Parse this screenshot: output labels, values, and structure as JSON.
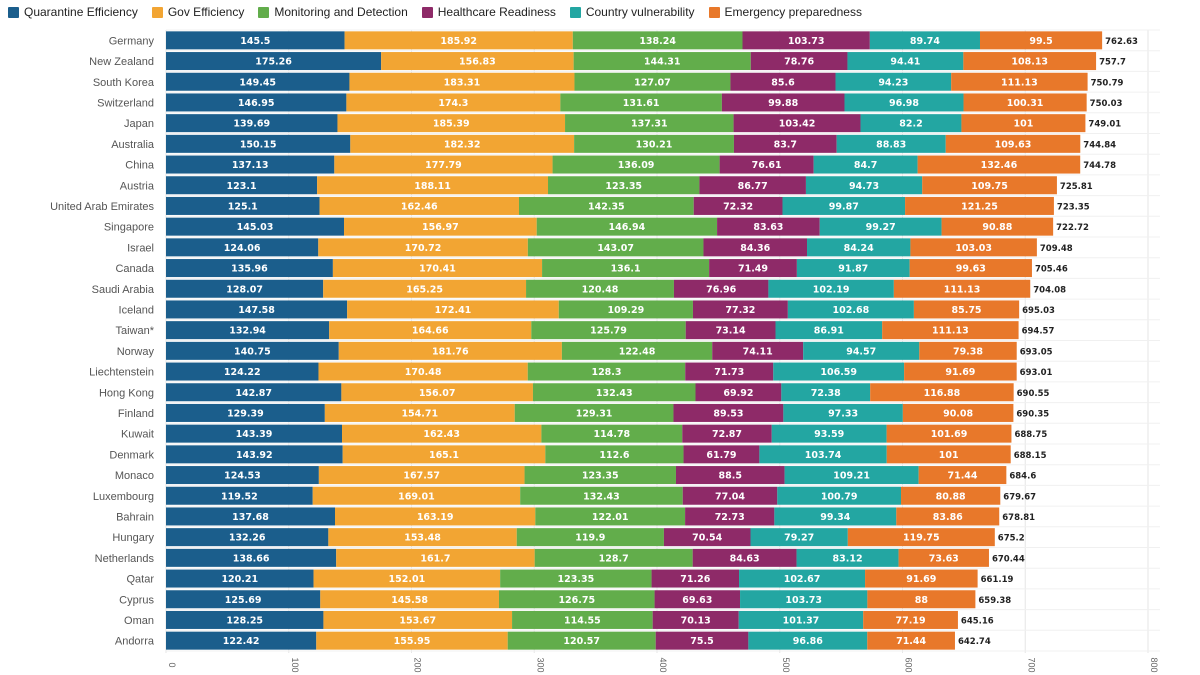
{
  "chart_data": {
    "type": "bar",
    "orientation": "horizontal",
    "stacked": true,
    "legend_position": "top-left",
    "grid": true,
    "xlim": [
      0,
      800
    ],
    "x_ticks": [
      "0",
      "100",
      "200",
      "300",
      "400",
      "500",
      "600",
      "700",
      "800"
    ],
    "categories": [
      "Germany",
      "New Zealand",
      "South Korea",
      "Switzerland",
      "Japan",
      "Australia",
      "China",
      "Austria",
      "United Arab Emirates",
      "Singapore",
      "Israel",
      "Canada",
      "Saudi Arabia",
      "Iceland",
      "Taiwan*",
      "Norway",
      "Liechtenstein",
      "Hong Kong",
      "Finland",
      "Kuwait",
      "Denmark",
      "Monaco",
      "Luxembourg",
      "Bahrain",
      "Hungary",
      "Netherlands",
      "Qatar",
      "Cyprus",
      "Oman",
      "Andorra"
    ],
    "series": [
      {
        "name": "Quarantine Efficiency",
        "color": "#1b5e8c",
        "values": [
          "145.5",
          "175.26",
          "149.45",
          "146.95",
          "139.69",
          "150.15",
          "137.13",
          "123.1",
          "125.1",
          "145.03",
          "124.06",
          "135.96",
          "128.07",
          "147.58",
          "132.94",
          "140.75",
          "124.22",
          "142.87",
          "129.39",
          "143.39",
          "143.92",
          "124.53",
          "119.52",
          "137.68",
          "132.26",
          "138.66",
          "120.21",
          "125.69",
          "128.25",
          "122.42"
        ]
      },
      {
        "name": "Gov Efficiency",
        "color": "#f2a533",
        "values": [
          "185.92",
          "156.83",
          "183.31",
          "174.3",
          "185.39",
          "182.32",
          "177.79",
          "188.11",
          "162.46",
          "156.97",
          "170.72",
          "170.41",
          "165.25",
          "172.41",
          "164.66",
          "181.76",
          "170.48",
          "156.07",
          "154.71",
          "162.43",
          "165.1",
          "167.57",
          "169.01",
          "163.19",
          "153.48",
          "161.7",
          "152.01",
          "145.58",
          "153.67",
          "155.95"
        ]
      },
      {
        "name": "Monitoring and Detection",
        "color": "#62ad4b",
        "values": [
          "138.24",
          "144.31",
          "127.07",
          "131.61",
          "137.31",
          "130.21",
          "136.09",
          "123.35",
          "142.35",
          "146.94",
          "143.07",
          "136.1",
          "120.48",
          "109.29",
          "125.79",
          "122.48",
          "128.3",
          "132.43",
          "129.31",
          "114.78",
          "112.6",
          "123.35",
          "132.43",
          "122.01",
          "119.9",
          "128.7",
          "123.35",
          "126.75",
          "114.55",
          "120.57"
        ]
      },
      {
        "name": "Healthcare Readiness",
        "color": "#8e2a68",
        "values": [
          "103.73",
          "78.76",
          "85.6",
          "99.88",
          "103.42",
          "83.7",
          "76.61",
          "86.77",
          "72.32",
          "83.63",
          "84.36",
          "71.49",
          "76.96",
          "77.32",
          "73.14",
          "74.11",
          "71.73",
          "69.92",
          "89.53",
          "72.87",
          "61.79",
          "88.5",
          "77.04",
          "72.73",
          "70.54",
          "84.63",
          "71.26",
          "69.63",
          "70.13",
          "75.5"
        ]
      },
      {
        "name": "Country vulnerability",
        "color": "#23a6a2",
        "values": [
          "89.74",
          "94.41",
          "94.23",
          "96.98",
          "82.2",
          "88.83",
          "84.7",
          "94.73",
          "99.87",
          "99.27",
          "84.24",
          "91.87",
          "102.19",
          "102.68",
          "86.91",
          "94.57",
          "106.59",
          "72.38",
          "97.33",
          "93.59",
          "103.74",
          "109.21",
          "100.79",
          "99.34",
          "79.27",
          "83.12",
          "102.67",
          "103.73",
          "101.37",
          "96.86"
        ]
      },
      {
        "name": "Emergency preparedness",
        "color": "#e8782a",
        "values": [
          "99.5",
          "108.13",
          "111.13",
          "100.31",
          "101",
          "109.63",
          "132.46",
          "109.75",
          "121.25",
          "90.88",
          "103.03",
          "99.63",
          "111.13",
          "85.75",
          "111.13",
          "79.38",
          "91.69",
          "116.88",
          "90.08",
          "101.69",
          "101",
          "71.44",
          "80.88",
          "83.86",
          "119.75",
          "73.63",
          "91.69",
          "88",
          "77.19",
          "71.44"
        ]
      }
    ],
    "totals": [
      "762.63",
      "757.7",
      "750.79",
      "750.03",
      "749.01",
      "744.84",
      "744.78",
      "725.81",
      "723.35",
      "722.72",
      "709.48",
      "705.46",
      "704.08",
      "695.03",
      "694.57",
      "693.05",
      "693.01",
      "690.55",
      "690.35",
      "688.75",
      "688.15",
      "684.6",
      "679.67",
      "678.81",
      "675.2",
      "670.44",
      "661.19",
      "659.38",
      "645.16",
      "642.74"
    ]
  }
}
